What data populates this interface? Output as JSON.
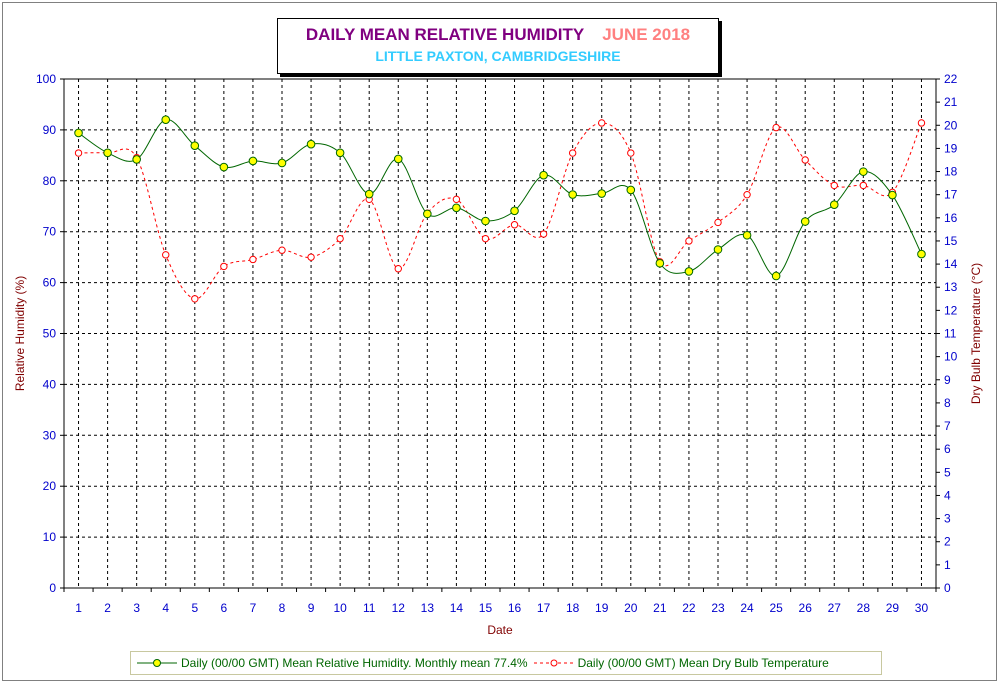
{
  "chart_data": {
    "type": "line",
    "title": "DAILY MEAN RELATIVE HUMIDITY",
    "title_period": "JUNE 2018",
    "subtitle": "LITTLE PAXTON, CAMBRIDGESHIRE",
    "xlabel": "Date",
    "ylabel": "Relative Humidity (%)",
    "y2label": "Dry Bulb Temperature (°C)",
    "x": [
      1,
      2,
      3,
      4,
      5,
      6,
      7,
      8,
      9,
      10,
      11,
      12,
      13,
      14,
      15,
      16,
      17,
      18,
      19,
      20,
      21,
      22,
      23,
      24,
      25,
      26,
      27,
      28,
      29,
      30
    ],
    "ylim": [
      0,
      100
    ],
    "yticks": [
      0,
      10,
      20,
      30,
      40,
      50,
      60,
      70,
      80,
      90,
      100
    ],
    "y2lim": [
      0,
      22
    ],
    "y2ticks": [
      0,
      1,
      2,
      3,
      4,
      5,
      6,
      7,
      8,
      9,
      10,
      11,
      12,
      13,
      14,
      15,
      16,
      17,
      18,
      19,
      20,
      21,
      22
    ],
    "grid": true,
    "legend_position": "bottom",
    "series": [
      {
        "name": "Daily (00/00 GMT) Mean Relative Humidity. Monthly mean 77.4%",
        "axis": "left",
        "color": "#006600",
        "marker_color": "#ffff00",
        "line_style": "solid",
        "values": [
          89.4,
          85.5,
          84.2,
          92.0,
          86.9,
          82.7,
          83.9,
          83.5,
          87.2,
          85.5,
          77.4,
          84.3,
          73.5,
          74.7,
          72.1,
          74.1,
          81.1,
          77.3,
          77.5,
          78.2,
          63.8,
          62.2,
          66.5,
          69.3,
          61.3,
          72.0,
          75.3,
          81.8,
          77.2,
          65.6
        ]
      },
      {
        "name": "Daily (00/00 GMT) Mean Dry Bulb Temperature",
        "axis": "right",
        "color": "#ff0000",
        "marker_color": "#ffffff",
        "line_style": "dashed",
        "values": [
          18.8,
          18.8,
          18.6,
          14.4,
          12.5,
          13.9,
          14.2,
          14.6,
          14.3,
          15.1,
          16.8,
          13.8,
          16.2,
          16.8,
          15.1,
          15.7,
          15.3,
          18.8,
          20.1,
          18.8,
          14.1,
          15.0,
          15.8,
          17.0,
          19.9,
          18.5,
          17.4,
          17.4,
          17.1,
          20.1
        ]
      }
    ]
  }
}
